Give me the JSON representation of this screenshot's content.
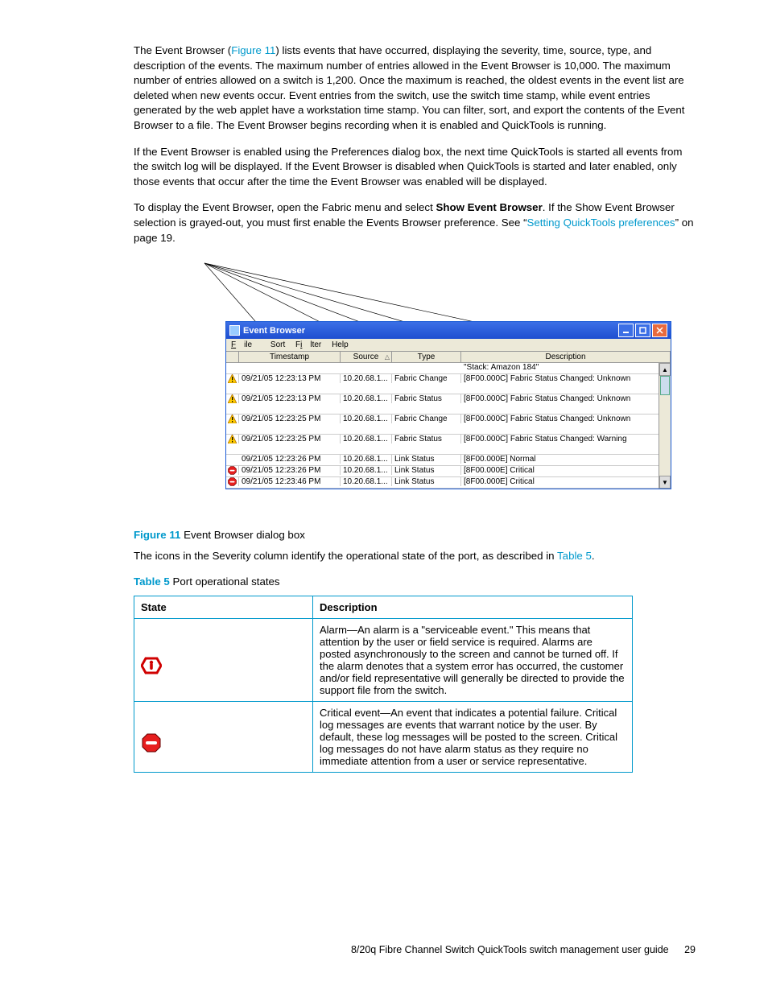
{
  "para1_a": "The Event Browser (",
  "para1_link": "Figure 11",
  "para1_b": ") lists events that have occurred, displaying the severity, time, source, type, and description of the events. The maximum number of entries allowed in the Event Browser is 10,000. The maximum number of entries allowed on a switch is 1,200. Once the maximum is reached, the oldest events in the event list are deleted when new events occur. Event entries from the switch, use the switch time stamp, while event entries generated by the web applet have a workstation time stamp. You can filter, sort, and export the contents of the Event Browser to a file. The Event Browser begins recording when it is enabled and QuickTools is running.",
  "para2": "If the Event Browser is enabled using the Preferences dialog box, the next time QuickTools is started all events from the switch log will be displayed. If the Event Browser is disabled when QuickTools is started and later enabled, only those events that occur after the time the Event Browser was enabled will be displayed.",
  "para3_a": "To display the Event Browser, open the Fabric menu and select ",
  "para3_bold": "Show Event Browser",
  "para3_b": ". If the Show Event Browser selection is grayed-out, you must first enable the Events Browser preference. See “",
  "para3_link": "Setting QuickTools preferences",
  "para3_c": "” on page 19.",
  "eb": {
    "title": "Event Browser",
    "menu": {
      "file": "File",
      "sort": "Sort",
      "filter": "Filter",
      "help": "Help"
    },
    "cols": {
      "ts": "Timestamp",
      "src": "Source",
      "type": "Type",
      "desc": "Description"
    },
    "rows": [
      {
        "icon": "",
        "ts": "",
        "src": "",
        "type": "",
        "desc": "\"Stack: Amazon 184\"",
        "tall": false
      },
      {
        "icon": "warn",
        "ts": "09/21/05 12:23:13 PM",
        "src": "10.20.68.1...",
        "type": "Fabric Change",
        "desc": "[8F00.000C] Fabric Status Changed: Unknown",
        "tall": true
      },
      {
        "icon": "warn",
        "ts": "09/21/05 12:23:13 PM",
        "src": "10.20.68.1...",
        "type": "Fabric Status",
        "desc": "[8F00.000C] Fabric Status Changed: Unknown",
        "tall": true
      },
      {
        "icon": "warn",
        "ts": "09/21/05 12:23:25 PM",
        "src": "10.20.68.1...",
        "type": "Fabric Change",
        "desc": "[8F00.000C] Fabric Status Changed: Unknown",
        "tall": true
      },
      {
        "icon": "warn",
        "ts": "09/21/05 12:23:25 PM",
        "src": "10.20.68.1...",
        "type": "Fabric Status",
        "desc": "[8F00.000C] Fabric Status Changed: Warning",
        "tall": true
      },
      {
        "icon": "",
        "ts": "09/21/05 12:23:26 PM",
        "src": "10.20.68.1...",
        "type": "Link Status",
        "desc": "[8F00.000E] Normal",
        "tall": false
      },
      {
        "icon": "crit",
        "ts": "09/21/05 12:23:26 PM",
        "src": "10.20.68.1...",
        "type": "Link Status",
        "desc": "[8F00.000E] Critical",
        "tall": false
      },
      {
        "icon": "crit",
        "ts": "09/21/05 12:23:46 PM",
        "src": "10.20.68.1...",
        "type": "Link Status",
        "desc": "[8F00.000E] Critical",
        "tall": false
      }
    ]
  },
  "fig_caption_label": "Figure 11",
  "fig_caption_text": "  Event Browser dialog box",
  "para4_a": "The icons in the Severity column identify the operational state of the port, as described in ",
  "para4_link": "Table 5",
  "para4_b": ".",
  "tbl_caption_label": "Table 5",
  "tbl_caption_text": "   Port operational states",
  "t5": {
    "h1": "State",
    "h2": "Description",
    "r1": "Alarm—An alarm is a \"serviceable event.\" This means that attention by the user or field service is required. Alarms are posted asynchronously to the screen and cannot be turned off. If the alarm denotes that a system error has occurred, the customer and/or field representative will generally be directed to provide the support file from the switch.",
    "r2": "Critical event—An event that indicates a potential failure. Critical log messages are events that warrant notice by the user. By default, these log messages will be posted to the screen. Critical log messages do not have alarm status as they require no immediate attention from a user or service representative."
  },
  "footer_text": "8/20q Fibre Channel Switch QuickTools switch management user guide",
  "footer_page": "29",
  "colors": {
    "link": "#0099cc",
    "titlebar_a": "#3b6fe6",
    "titlebar_b": "#1f4fd0",
    "close_btn": "#e86a3e",
    "warn_fill": "#ffcc00",
    "warn_stroke": "#b07000",
    "crit_fill": "#e61e1e",
    "alarm_stroke": "#d00000",
    "alarm_inner": "#d00000"
  }
}
